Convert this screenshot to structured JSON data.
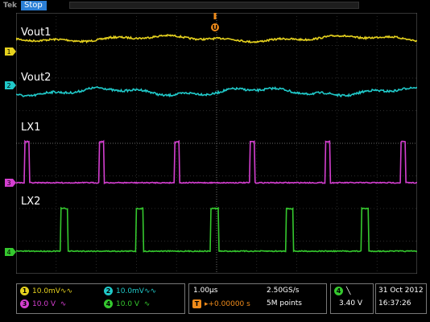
{
  "header": {
    "brand": "Tek",
    "status": "Stop"
  },
  "traces": [
    {
      "label": "Vout1",
      "channel": "1",
      "color": "#e6d21e"
    },
    {
      "label": "Vout2",
      "channel": "2",
      "color": "#20c9c9"
    },
    {
      "label": "LX1",
      "channel": "3",
      "color": "#d43fd0"
    },
    {
      "label": "LX2",
      "channel": "4",
      "color": "#35c82e"
    }
  ],
  "trigger_marker": "U",
  "channel_settings": {
    "ch1": {
      "num": "1",
      "value": "10.0mV",
      "suffix": "∿∿"
    },
    "ch2": {
      "num": "2",
      "value": "10.0mV",
      "suffix": "∿∿"
    },
    "ch3": {
      "num": "3",
      "value": "10.0 V",
      "suffix": "∿"
    },
    "ch4": {
      "num": "4",
      "value": "10.0 V",
      "suffix": "∿"
    }
  },
  "timebase": {
    "scale": "1.00µs",
    "sample_rate": "2.50GS/s",
    "position_icon": "T",
    "position": "▸+0.00000 s",
    "record": "5M points"
  },
  "trigger": {
    "source": "4",
    "slope_icon": "falling-edge-icon",
    "slope_glyph": "╲",
    "level": "3.40 V"
  },
  "datetime": {
    "date": "31 Oct  2012",
    "time": "16:37:26"
  }
}
